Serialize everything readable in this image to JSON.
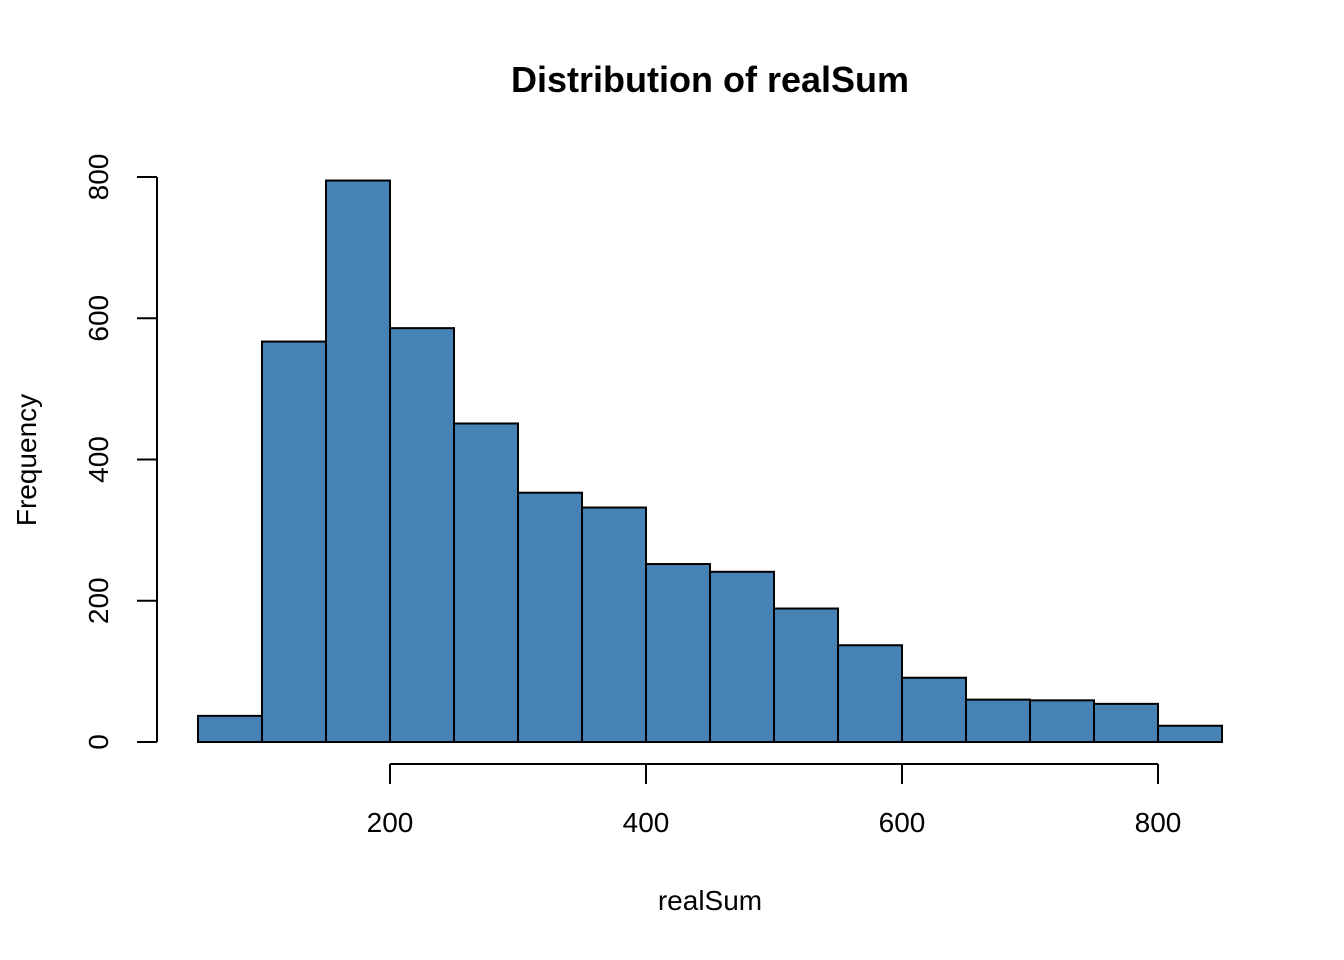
{
  "chart_data": {
    "type": "bar",
    "title": "Distribution of realSum",
    "xlabel": "realSum",
    "ylabel": "Frequency",
    "bin_edges": [
      50,
      100,
      150,
      200,
      250,
      300,
      350,
      400,
      450,
      500,
      550,
      600,
      650,
      700,
      750,
      800,
      850
    ],
    "values": [
      37,
      567,
      795,
      586,
      451,
      353,
      332,
      252,
      241,
      189,
      137,
      91,
      60,
      59,
      54,
      23
    ],
    "xticks": [
      200,
      400,
      600,
      800
    ],
    "yticks": [
      0,
      200,
      400,
      600,
      800
    ],
    "xlim": [
      50,
      850
    ],
    "ylim": [
      0,
      800
    ],
    "bar_color": "#4682B4",
    "grid": false
  }
}
